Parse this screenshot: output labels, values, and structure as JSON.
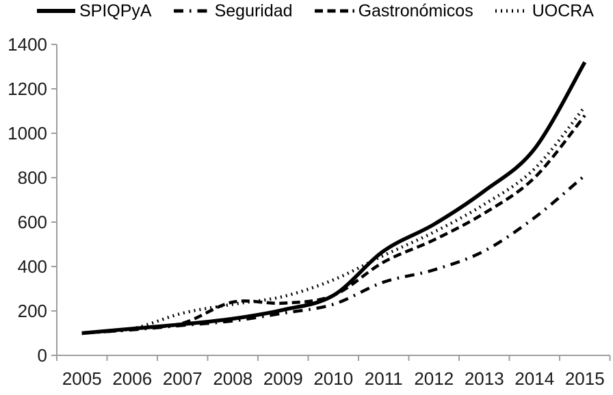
{
  "chart_data": {
    "type": "line",
    "title": "",
    "xlabel": "",
    "ylabel": "",
    "x": [
      "2005",
      "2006",
      "2007",
      "2008",
      "2009",
      "2010",
      "2011",
      "2012",
      "2013",
      "2014",
      "2015"
    ],
    "series": [
      {
        "name": "SPIQPyA",
        "style": "solid",
        "values": [
          100,
          120,
          140,
          165,
          205,
          270,
          470,
          590,
          740,
          930,
          1320
        ]
      },
      {
        "name": "Seguridad",
        "style": "dash-dot",
        "values": [
          100,
          115,
          135,
          155,
          190,
          230,
          330,
          385,
          470,
          620,
          810
        ]
      },
      {
        "name": "Gastronómicos",
        "style": "dashed",
        "values": [
          100,
          120,
          145,
          240,
          235,
          270,
          420,
          520,
          640,
          800,
          1080
        ]
      },
      {
        "name": "UOCRA",
        "style": "dotted",
        "values": [
          100,
          120,
          190,
          230,
          265,
          340,
          450,
          555,
          680,
          840,
          1120
        ]
      }
    ],
    "ylim": [
      0,
      1400
    ],
    "ytick_step": 200,
    "yticks": [
      "0",
      "200",
      "400",
      "600",
      "800",
      "1000",
      "1200",
      "1400"
    ],
    "grid": false,
    "legend_position": "top",
    "line_color": "#000000",
    "axis_color": "#9d9d9d",
    "label_color": "#1a1a1a",
    "background": "#ffffff"
  }
}
